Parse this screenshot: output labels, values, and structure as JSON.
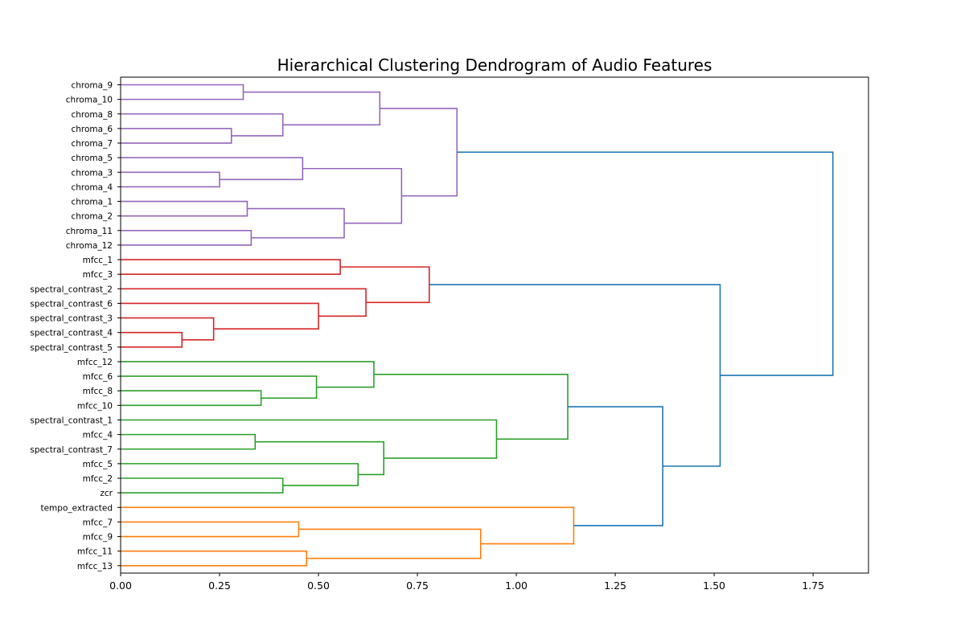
{
  "chart_data": {
    "type": "dendrogram",
    "orientation": "right",
    "title": "Hierarchical Clustering Dendrogram of Audio Features",
    "xlim": [
      0,
      1.89
    ],
    "xticks": [
      "0.00",
      "0.25",
      "0.50",
      "0.75",
      "1.00",
      "1.25",
      "1.50",
      "1.75"
    ],
    "xtick_values": [
      0,
      0.25,
      0.5,
      0.75,
      1.0,
      1.25,
      1.5,
      1.75
    ],
    "leaves": [
      "chroma_9",
      "chroma_10",
      "chroma_8",
      "chroma_6",
      "chroma_7",
      "chroma_5",
      "chroma_3",
      "chroma_4",
      "chroma_1",
      "chroma_2",
      "chroma_11",
      "chroma_12",
      "mfcc_1",
      "mfcc_3",
      "spectral_contrast_2",
      "spectral_contrast_6",
      "spectral_contrast_3",
      "spectral_contrast_4",
      "spectral_contrast_5",
      "mfcc_12",
      "mfcc_6",
      "mfcc_8",
      "mfcc_10",
      "spectral_contrast_1",
      "mfcc_4",
      "spectral_contrast_7",
      "mfcc_5",
      "mfcc_2",
      "zcr",
      "tempo_extracted",
      "mfcc_7",
      "mfcc_9",
      "mfcc_11",
      "mfcc_13"
    ],
    "colors": {
      "purple": "#9467bd",
      "red": "#d62728",
      "green": "#2ca02c",
      "orange": "#ff7f0e",
      "blue": "#1f77b4"
    },
    "merges": [
      {
        "a": "L0",
        "b": "L1",
        "height": 0.31,
        "color": "purple"
      },
      {
        "a": "L3",
        "b": "L4",
        "height": 0.28,
        "color": "purple"
      },
      {
        "a": "L2",
        "b": "M1",
        "height": 0.41,
        "color": "purple"
      },
      {
        "a": "M0",
        "b": "M2",
        "height": 0.655,
        "color": "purple"
      },
      {
        "a": "L6",
        "b": "L7",
        "height": 0.25,
        "color": "purple"
      },
      {
        "a": "L5",
        "b": "M4",
        "height": 0.46,
        "color": "purple"
      },
      {
        "a": "L8",
        "b": "L9",
        "height": 0.32,
        "color": "purple"
      },
      {
        "a": "L10",
        "b": "L11",
        "height": 0.33,
        "color": "purple"
      },
      {
        "a": "M6",
        "b": "M7",
        "height": 0.565,
        "color": "purple"
      },
      {
        "a": "M5",
        "b": "M8",
        "height": 0.71,
        "color": "purple"
      },
      {
        "a": "M3",
        "b": "M9",
        "height": 0.85,
        "color": "purple"
      },
      {
        "a": "L12",
        "b": "L13",
        "height": 0.555,
        "color": "red"
      },
      {
        "a": "L17",
        "b": "L18",
        "height": 0.155,
        "color": "red"
      },
      {
        "a": "L16",
        "b": "M12",
        "height": 0.235,
        "color": "red"
      },
      {
        "a": "L15",
        "b": "M13",
        "height": 0.5,
        "color": "red"
      },
      {
        "a": "L14",
        "b": "M14",
        "height": 0.62,
        "color": "red"
      },
      {
        "a": "M11",
        "b": "M15",
        "height": 0.78,
        "color": "red"
      },
      {
        "a": "L21",
        "b": "L22",
        "height": 0.355,
        "color": "green"
      },
      {
        "a": "L20",
        "b": "M17",
        "height": 0.495,
        "color": "green"
      },
      {
        "a": "L19",
        "b": "M18",
        "height": 0.64,
        "color": "green"
      },
      {
        "a": "L24",
        "b": "L25",
        "height": 0.34,
        "color": "green"
      },
      {
        "a": "L27",
        "b": "L28",
        "height": 0.41,
        "color": "green"
      },
      {
        "a": "L26",
        "b": "M21",
        "height": 0.6,
        "color": "green"
      },
      {
        "a": "M20",
        "b": "M22",
        "height": 0.665,
        "color": "green"
      },
      {
        "a": "L23",
        "b": "M23",
        "height": 0.95,
        "color": "green"
      },
      {
        "a": "M19",
        "b": "M24",
        "height": 1.13,
        "color": "green"
      },
      {
        "a": "L30",
        "b": "L31",
        "height": 0.45,
        "color": "orange"
      },
      {
        "a": "L32",
        "b": "L33",
        "height": 0.47,
        "color": "orange"
      },
      {
        "a": "M26",
        "b": "M27",
        "height": 0.91,
        "color": "orange"
      },
      {
        "a": "L29",
        "b": "M28",
        "height": 1.145,
        "color": "orange"
      },
      {
        "a": "M25",
        "b": "M29",
        "height": 1.37,
        "color": "blue"
      },
      {
        "a": "M16",
        "b": "M30",
        "height": 1.515,
        "color": "blue"
      },
      {
        "a": "M10",
        "b": "M31",
        "height": 1.8,
        "color": "blue"
      }
    ]
  }
}
